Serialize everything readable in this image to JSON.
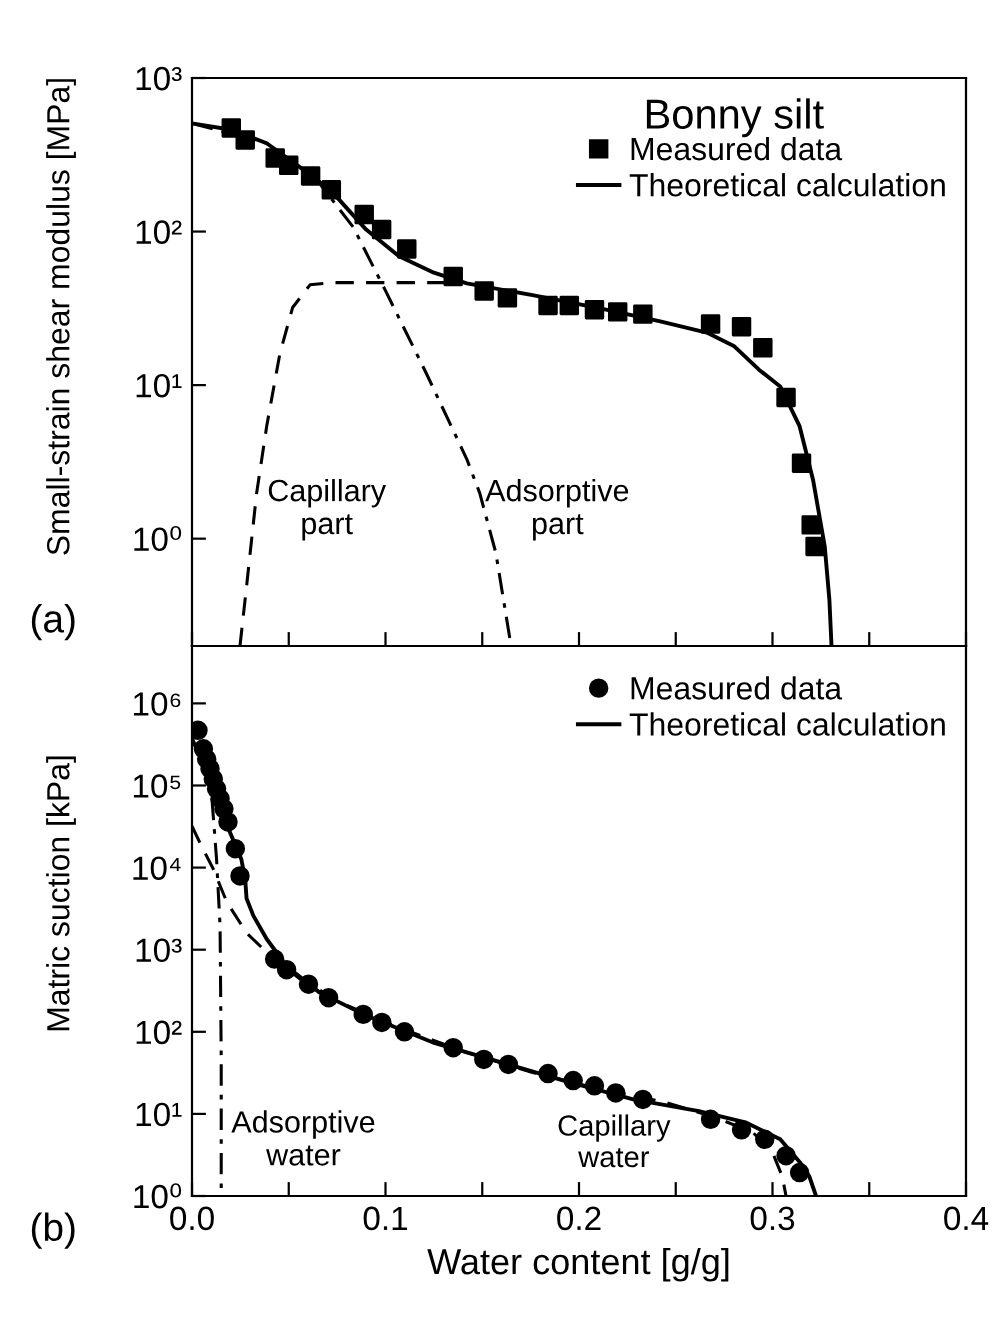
{
  "chart_data": [
    {
      "type": "scatter",
      "ylabel": "Small-strain shear modulus [MPa]",
      "log": "y",
      "xlim": [
        0,
        0.4
      ],
      "ylim": [
        0.2,
        1000
      ],
      "xticks": [
        {
          "value": 0,
          "label": null
        },
        {
          "value": 0.05,
          "label": null
        },
        {
          "value": 0.1,
          "label": null
        },
        {
          "value": 0.15,
          "label": null
        },
        {
          "value": 0.2,
          "label": null
        },
        {
          "value": 0.25,
          "label": null
        },
        {
          "value": 0.3,
          "label": null
        },
        {
          "value": 0.35,
          "label": null
        },
        {
          "value": 0.4,
          "label": null
        }
      ],
      "yticks": [
        {
          "value": 1,
          "label": "10⁰"
        },
        {
          "value": 10,
          "label": "10¹"
        },
        {
          "value": 100,
          "label": "10²"
        },
        {
          "value": 1000,
          "label": "10³"
        }
      ],
      "tick_labels": "y",
      "grid": false,
      "legend": "top right",
      "annotations": [
        "(a)",
        "Bonny silt",
        "Capillary\npart",
        "Adsorptive\npart"
      ],
      "series": [
        {
          "name": "Measured data",
          "marker": "square",
          "color": "#000000",
          "x": [
            0.0203,
            0.0275,
            0.043,
            0.05,
            0.0613,
            0.072,
            0.089,
            0.098,
            0.111,
            0.135,
            0.151,
            0.163,
            0.184,
            0.195,
            0.208,
            0.22,
            0.233,
            0.268,
            0.284,
            0.295,
            0.307,
            0.315,
            0.32,
            0.322
          ],
          "values": [
            473,
            395,
            301,
            270,
            230,
            187,
            129,
            103,
            77,
            51,
            41,
            37,
            33,
            33,
            31,
            30,
            29,
            25,
            24,
            17.5,
            8.3,
            3.1,
            1.23,
            0.89
          ]
        },
        {
          "name": "Theoretical calculation",
          "type": "line",
          "line_style": "solid",
          "marker": "none",
          "color": "#000000",
          "x": [
            0,
            0.0203,
            0.0386,
            0.0613,
            0.073,
            0.09,
            0.107,
            0.125,
            0.142,
            0.176,
            0.211,
            0.242,
            0.266,
            0.28,
            0.293,
            0.304,
            0.314,
            0.321,
            0.327,
            0.3294,
            0.3305
          ],
          "values": [
            507,
            460,
            376,
            234,
            178,
            103,
            69,
            54,
            46,
            38.5,
            31.6,
            26,
            22,
            18,
            12.6,
            9.8,
            5.4,
            2.4,
            0.89,
            0.4,
            0.2
          ]
        },
        {
          "type": "line",
          "line_style": "dashdot",
          "marker": "none",
          "color": "#000000",
          "x": [
            0,
            0.0386,
            0.0613,
            0.066,
            0.0833,
            0.1005,
            0.121,
            0.142,
            0.1487,
            0.157,
            0.1649
          ],
          "values": [
            507,
            376,
            232,
            205,
            107,
            40,
            12,
            3.3,
            1.98,
            0.81,
            0.2
          ]
        },
        {
          "type": "line",
          "line_style": "dashed",
          "marker": "none",
          "color": "#000000",
          "x": [
            0.0248,
            0.0282,
            0.0334,
            0.0386,
            0.0454,
            0.052,
            0.061,
            0.073,
            0.107,
            0.14
          ],
          "values": [
            0.2,
            0.49,
            1.98,
            5.4,
            16,
            32,
            45,
            46.5,
            46.5,
            46.5
          ]
        }
      ]
    },
    {
      "type": "scatter",
      "xlabel": "Water content [g/g]",
      "ylabel": "Matric suction [kPa]",
      "log": "y",
      "xlim": [
        0,
        0.4
      ],
      "ylim": [
        1,
        5000000
      ],
      "xticks": [
        {
          "value": 0,
          "label": "0.0"
        },
        {
          "value": 0.05,
          "label": null
        },
        {
          "value": 0.1,
          "label": "0.1"
        },
        {
          "value": 0.15,
          "label": null
        },
        {
          "value": 0.2,
          "label": "0.2"
        },
        {
          "value": 0.25,
          "label": null
        },
        {
          "value": 0.3,
          "label": "0.3"
        },
        {
          "value": 0.35,
          "label": null
        },
        {
          "value": 0.4,
          "label": "0.4"
        }
      ],
      "yticks": [
        {
          "value": 1,
          "label": "10⁰"
        },
        {
          "value": 10,
          "label": "10¹"
        },
        {
          "value": 100,
          "label": "10²"
        },
        {
          "value": 1000,
          "label": "10³"
        },
        {
          "value": 10000,
          "label": "10⁴"
        },
        {
          "value": 100000,
          "label": "10⁵"
        },
        {
          "value": 1000000,
          "label": "10⁶"
        }
      ],
      "grid": false,
      "legend": "top right",
      "annotations": [
        "(b)",
        "Adsorptive\nwater",
        "Capillary\nwater"
      ],
      "series": [
        {
          "name": "Measured data",
          "marker": "circle",
          "color": "#000000",
          "x": [
            0.0031,
            0.0059,
            0.0076,
            0.0093,
            0.011,
            0.0127,
            0.0145,
            0.0165,
            0.0186,
            0.0224,
            0.0248,
            0.0427,
            0.0489,
            0.0602,
            0.0706,
            0.0885,
            0.0981,
            0.1098,
            0.135,
            0.1508,
            0.1635,
            0.184,
            0.197,
            0.208,
            0.219,
            0.233,
            0.268,
            0.284,
            0.296,
            0.307,
            0.314
          ],
          "values": [
            470000,
            280000,
            210000,
            160000,
            120000,
            91000,
            69000,
            52000,
            36000,
            17000,
            7900,
            770,
            570,
            380,
            260,
            163,
            130,
            100,
            64,
            46,
            40,
            31,
            25.5,
            22,
            18,
            15,
            8.6,
            6.4,
            4.9,
            3.1,
            1.93
          ]
        },
        {
          "name": "Theoretical calculation",
          "type": "line",
          "line_style": "solid",
          "marker": "none",
          "color": "#000000",
          "x": [
            0,
            0.0041,
            0.011,
            0.0196,
            0.0255,
            0.0275,
            0.0282,
            0.0317,
            0.0386,
            0.0489,
            0.066,
            0.09,
            0.1246,
            0.159,
            0.193,
            0.228,
            0.262,
            0.286,
            0.304,
            0.314,
            0.319,
            0.3225
          ],
          "values": [
            370000,
            230000,
            83000,
            27000,
            12600,
            7200,
            4200,
            2600,
            1350,
            630,
            300,
            158,
            74,
            43,
            25,
            15,
            10.8,
            7.9,
            4.9,
            2.6,
            1.74,
            1
          ]
        },
        {
          "type": "line",
          "line_style": "dashed",
          "marker": "none",
          "color": "#000000",
          "x": [
            0,
            0.0041,
            0.011,
            0.018,
            0.0282,
            0.0386,
            0.0558,
            0.08,
            0.107,
            0.142,
            0.176,
            0.211,
            0.245,
            0.273,
            0.29,
            0.3,
            0.305,
            0.307
          ],
          "values": [
            32000,
            20000,
            9600,
            3800,
            1600,
            930,
            440,
            210,
            112,
            56,
            32,
            20,
            13.8,
            8.6,
            5.9,
            3.4,
            1.74,
            1
          ]
        },
        {
          "type": "line",
          "line_style": "dashdot",
          "marker": "none",
          "color": "#000000",
          "x": [
            0.0103,
            0.0127,
            0.0145,
            0.0151,
            0.0151
          ],
          "values": [
            69000,
            12600,
            1950,
            47,
            1
          ]
        }
      ]
    }
  ]
}
